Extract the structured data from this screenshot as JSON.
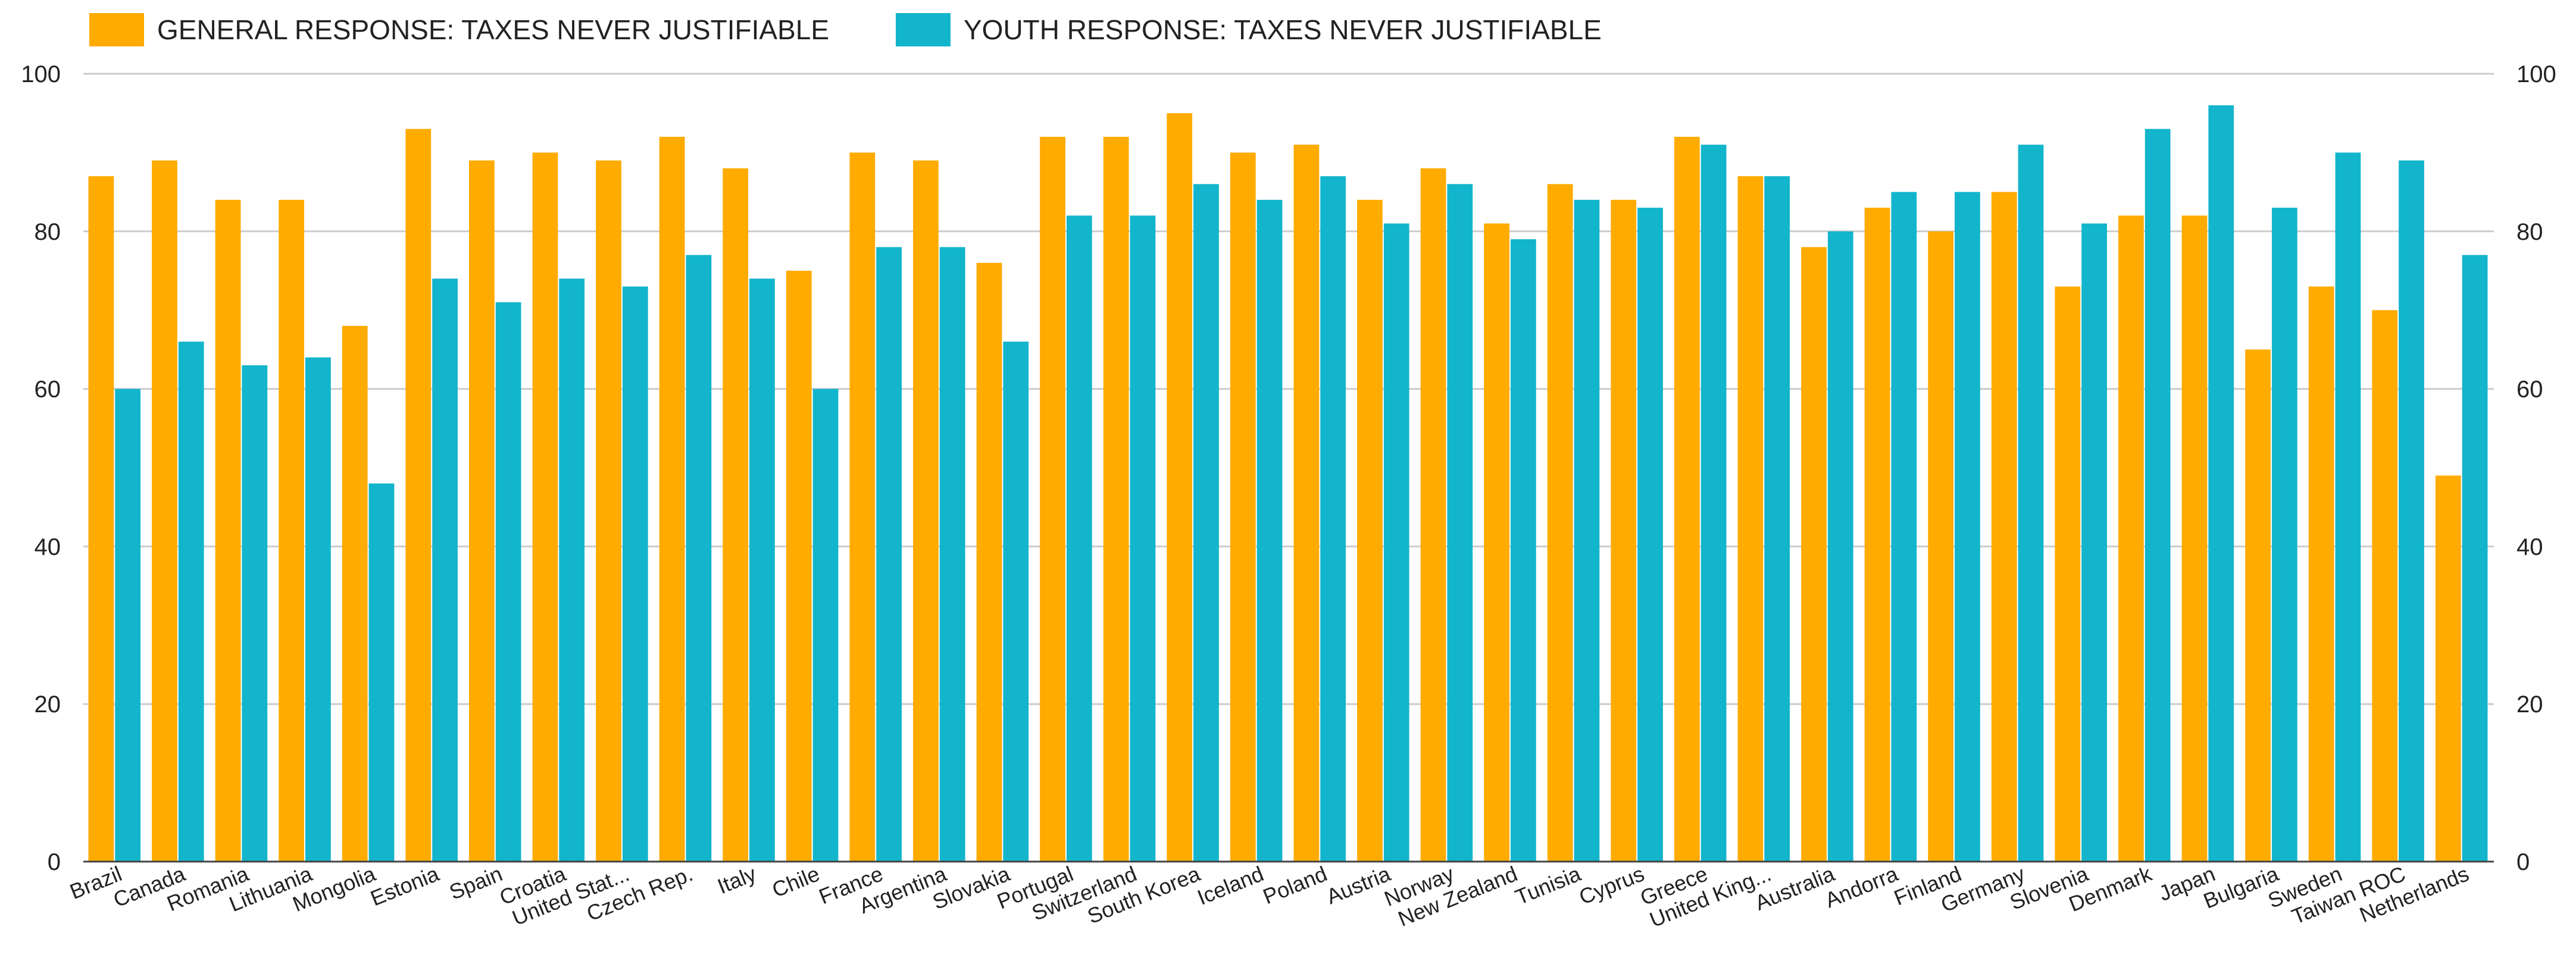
{
  "chart_data": {
    "type": "bar",
    "categories": [
      "Brazil",
      "Canada",
      "Romania",
      "Lithuania",
      "Mongolia",
      "Estonia",
      "Spain",
      "Croatia",
      "United Stat...",
      "Czech Rep.",
      "Italy",
      "Chile",
      "France",
      "Argentina",
      "Slovakia",
      "Portugal",
      "Switzerland",
      "South Korea",
      "Iceland",
      "Poland",
      "Austria",
      "Norway",
      "New Zealand",
      "Tunisia",
      "Cyprus",
      "Greece",
      "United King...",
      "Australia",
      "Andorra",
      "Finland",
      "Germany",
      "Slovenia",
      "Denmark",
      "Japan",
      "Bulgaria",
      "Sweden",
      "Taiwan ROC",
      "Netherlands"
    ],
    "series": [
      {
        "name": "GENERAL RESPONSE: TAXES NEVER JUSTIFIABLE",
        "color": "#FFAB00",
        "values": [
          87,
          89,
          84,
          84,
          68,
          93,
          89,
          90,
          89,
          92,
          88,
          75,
          90,
          89,
          76,
          92,
          92,
          95,
          90,
          91,
          84,
          88,
          81,
          86,
          84,
          92,
          87,
          78,
          83,
          80,
          85,
          73,
          82,
          82,
          65,
          73,
          70,
          49
        ]
      },
      {
        "name": "YOUTH RESPONSE: TAXES NEVER JUSTIFIABLE",
        "color": "#12B5CB",
        "values": [
          60,
          66,
          63,
          64,
          48,
          74,
          71,
          74,
          73,
          77,
          74,
          60,
          78,
          78,
          66,
          82,
          82,
          86,
          84,
          87,
          81,
          86,
          79,
          84,
          83,
          91,
          87,
          80,
          85,
          85,
          91,
          81,
          93,
          96,
          83,
          90,
          89,
          77
        ]
      }
    ],
    "yticks": [
      "0",
      "20",
      "40",
      "60",
      "80",
      "100"
    ],
    "ylim": [
      0,
      100
    ],
    "grid": true,
    "legend_position": "top-left",
    "axis_color": "#444444",
    "grid_color": "#CCCCCC"
  }
}
